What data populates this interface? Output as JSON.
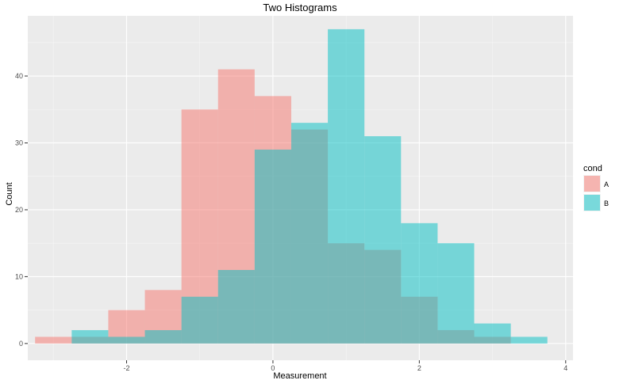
{
  "chart_data": {
    "type": "histogram",
    "title": "Two Histograms",
    "xlabel": "Measurement",
    "ylabel": "Count",
    "xlim": [
      -3.35,
      4.1
    ],
    "ylim": [
      -2.5,
      49
    ],
    "x_ticks": [
      -2,
      0,
      2,
      4
    ],
    "y_ticks": [
      0,
      10,
      20,
      30,
      40
    ],
    "bin_width": 0.5,
    "grid": true,
    "legend_position": "right",
    "legend_title": "cond",
    "series": [
      {
        "name": "A",
        "color": "#F8766D",
        "bins": [
          {
            "x0": -3.25,
            "x1": -2.75,
            "count": 1
          },
          {
            "x0": -2.75,
            "x1": -2.25,
            "count": 1
          },
          {
            "x0": -2.25,
            "x1": -1.75,
            "count": 5
          },
          {
            "x0": -1.75,
            "x1": -1.25,
            "count": 8
          },
          {
            "x0": -1.25,
            "x1": -0.75,
            "count": 35
          },
          {
            "x0": -0.75,
            "x1": -0.25,
            "count": 41
          },
          {
            "x0": -0.25,
            "x1": 0.25,
            "count": 37
          },
          {
            "x0": 0.25,
            "x1": 0.75,
            "count": 32
          },
          {
            "x0": 0.75,
            "x1": 1.25,
            "count": 15
          },
          {
            "x0": 1.25,
            "x1": 1.75,
            "count": 14
          },
          {
            "x0": 1.75,
            "x1": 2.25,
            "count": 7
          },
          {
            "x0": 2.25,
            "x1": 2.75,
            "count": 2
          },
          {
            "x0": 2.75,
            "x1": 3.25,
            "count": 1
          }
        ]
      },
      {
        "name": "B",
        "color": "#00BFC4",
        "bins": [
          {
            "x0": -2.75,
            "x1": -2.25,
            "count": 2
          },
          {
            "x0": -2.25,
            "x1": -1.75,
            "count": 1
          },
          {
            "x0": -1.75,
            "x1": -1.25,
            "count": 2
          },
          {
            "x0": -1.25,
            "x1": -0.75,
            "count": 7
          },
          {
            "x0": -0.75,
            "x1": -0.25,
            "count": 11
          },
          {
            "x0": -0.25,
            "x1": 0.25,
            "count": 29
          },
          {
            "x0": 0.25,
            "x1": 0.75,
            "count": 33
          },
          {
            "x0": 0.75,
            "x1": 1.25,
            "count": 47
          },
          {
            "x0": 1.25,
            "x1": 1.75,
            "count": 31
          },
          {
            "x0": 1.75,
            "x1": 2.25,
            "count": 18
          },
          {
            "x0": 2.25,
            "x1": 2.75,
            "count": 15
          },
          {
            "x0": 2.75,
            "x1": 3.25,
            "count": 3
          },
          {
            "x0": 3.25,
            "x1": 3.75,
            "count": 1
          }
        ]
      }
    ]
  }
}
